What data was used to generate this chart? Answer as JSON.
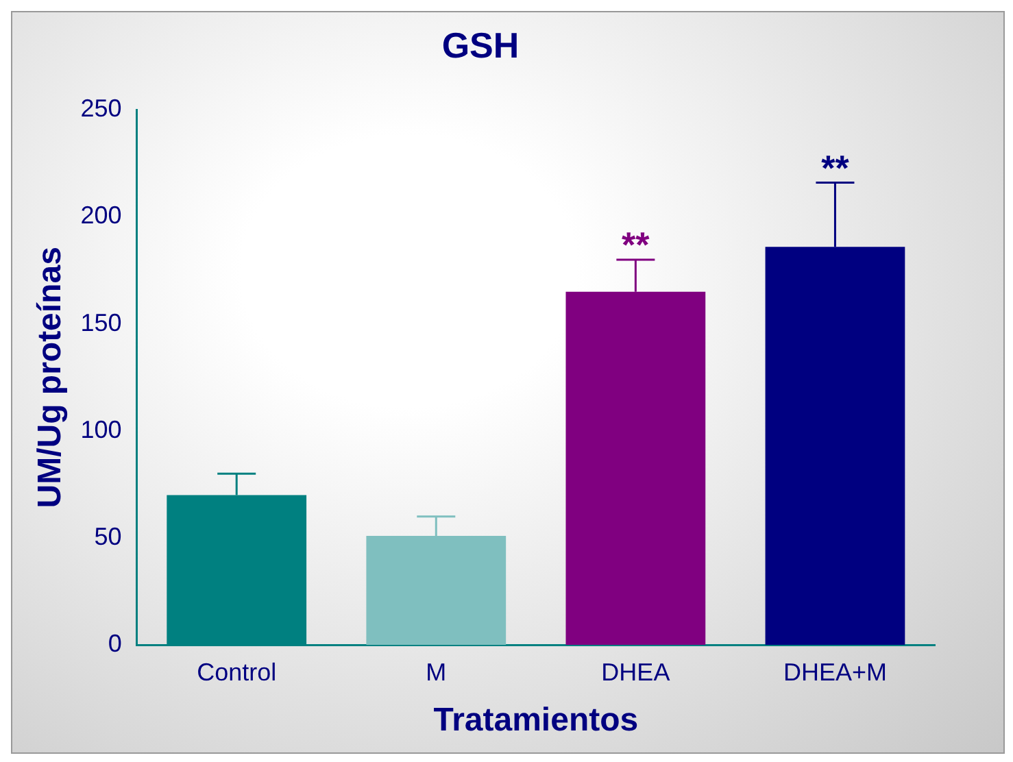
{
  "chart_data": {
    "type": "bar",
    "title": "GSH",
    "xlabel": "Tratamientos",
    "ylabel": "UM/Ug proteínas",
    "categories": [
      "Control",
      "M",
      "DHEA",
      "DHEA+M"
    ],
    "values": [
      70,
      51,
      165,
      186
    ],
    "colors": [
      "#008080",
      "#7fbfbf",
      "#800080",
      "#000080"
    ],
    "errors": [
      [
        70,
        80
      ],
      [
        51,
        60
      ],
      [
        165,
        180
      ],
      [
        186,
        216
      ]
    ],
    "ylim": [
      0,
      250
    ],
    "yticks": [
      0,
      50,
      100,
      150,
      200,
      250
    ],
    "grid": false,
    "legend": false,
    "annotations": [
      {
        "text": "**",
        "x": "DHEA",
        "y": 180
      },
      {
        "text": "**",
        "x": "DHEA+M",
        "y": 216
      }
    ]
  }
}
